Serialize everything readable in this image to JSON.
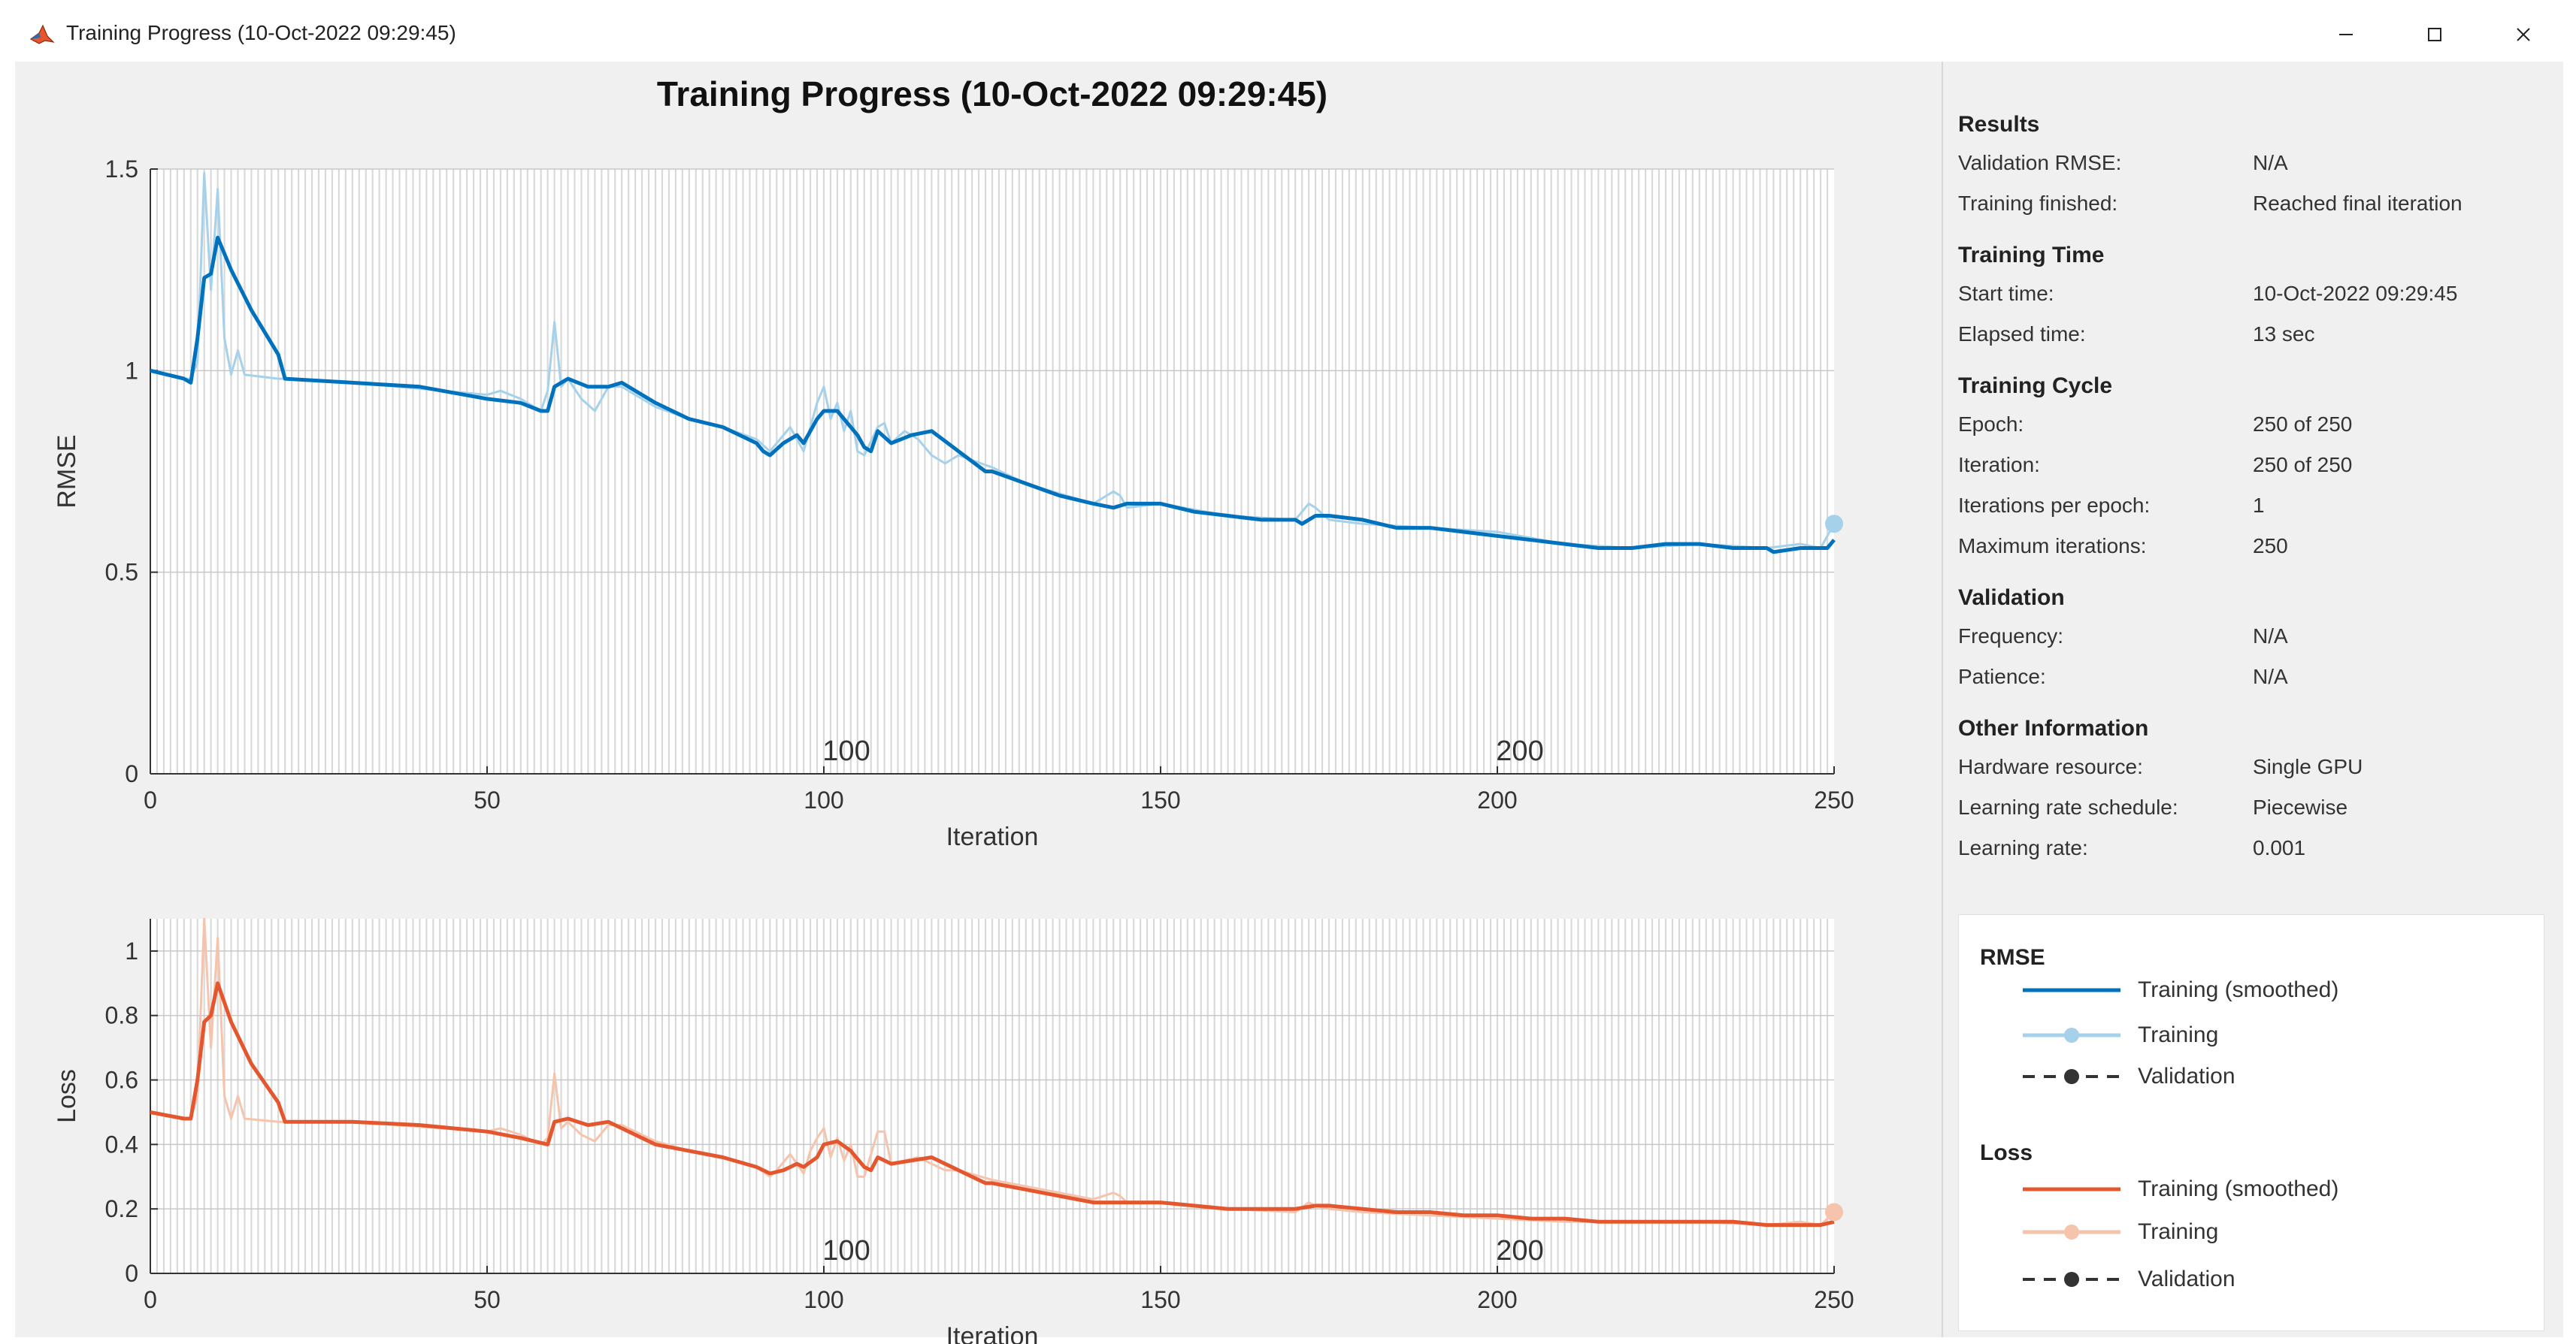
{
  "window": {
    "title": "Training Progress (10-Oct-2022 09:29:45)",
    "controls": [
      "minimize",
      "maximize",
      "close"
    ]
  },
  "plot_title": "Training Progress (10-Oct-2022 09:29:45)",
  "side_panel": {
    "sections": [
      {
        "title": "Results",
        "rows": [
          {
            "label": "Validation RMSE:",
            "value": "N/A"
          },
          {
            "label": "Training finished:",
            "value": "Reached final iteration"
          }
        ]
      },
      {
        "title": "Training Time",
        "rows": [
          {
            "label": "Start time:",
            "value": "10-Oct-2022 09:29:45"
          },
          {
            "label": "Elapsed time:",
            "value": "13 sec"
          }
        ]
      },
      {
        "title": "Training Cycle",
        "rows": [
          {
            "label": "Epoch:",
            "value": "250 of 250"
          },
          {
            "label": "Iteration:",
            "value": "250 of 250"
          },
          {
            "label": "Iterations per epoch:",
            "value": "1"
          },
          {
            "label": "Maximum iterations:",
            "value": "250"
          }
        ]
      },
      {
        "title": "Validation",
        "rows": [
          {
            "label": "Frequency:",
            "value": "N/A"
          },
          {
            "label": "Patience:",
            "value": "N/A"
          }
        ]
      },
      {
        "title": "Other Information",
        "rows": [
          {
            "label": "Hardware resource:",
            "value": "Single GPU"
          },
          {
            "label": "Learning rate schedule:",
            "value": "Piecewise"
          },
          {
            "label": "Learning rate:",
            "value": "0.001"
          }
        ]
      }
    ]
  },
  "legend": {
    "rmse_title": "RMSE",
    "loss_title": "Loss",
    "items": [
      "Training (smoothed)",
      "Training",
      "Validation"
    ]
  },
  "colors": {
    "rmse_smoothed": "#0072bd",
    "rmse_raw": "#a6d1ea",
    "loss_smoothed": "#e4572e",
    "loss_raw": "#f6c3ac",
    "validation": "#333333"
  },
  "chart_data": [
    {
      "type": "line",
      "title": "Training Progress (10-Oct-2022 09:29:45)",
      "xlabel": "Iteration",
      "ylabel": "RMSE",
      "xlim": [
        0,
        250
      ],
      "ylim": [
        0,
        1.5
      ],
      "xticks": [
        "0",
        "50",
        "100",
        "150",
        "200",
        "250"
      ],
      "yticks": [
        "0",
        "0.5",
        "1",
        "1.5"
      ],
      "epoch_labels": [
        {
          "x": 100,
          "text": "100"
        },
        {
          "x": 200,
          "text": "200"
        }
      ],
      "series": [
        {
          "name": "Training (smoothed)",
          "x": [
            0,
            5,
            6,
            7,
            8,
            9,
            10,
            12,
            15,
            19,
            20,
            30,
            40,
            50,
            55,
            58,
            59,
            60,
            62,
            65,
            68,
            70,
            75,
            80,
            85,
            90,
            91,
            92,
            94,
            96,
            97,
            99,
            100,
            102,
            104,
            105,
            106,
            107,
            108,
            110,
            113,
            116,
            120,
            124,
            125,
            130,
            135,
            140,
            143,
            145,
            150,
            155,
            160,
            165,
            170,
            171,
            173,
            175,
            180,
            185,
            190,
            195,
            200,
            205,
            210,
            215,
            218,
            220,
            225,
            230,
            235,
            240,
            241,
            245,
            248,
            249,
            250
          ],
          "y": [
            1.0,
            0.98,
            0.97,
            1.08,
            1.23,
            1.24,
            1.33,
            1.25,
            1.15,
            1.04,
            0.98,
            0.97,
            0.96,
            0.93,
            0.92,
            0.9,
            0.9,
            0.96,
            0.98,
            0.96,
            0.96,
            0.97,
            0.92,
            0.88,
            0.86,
            0.82,
            0.8,
            0.79,
            0.82,
            0.84,
            0.82,
            0.88,
            0.9,
            0.9,
            0.86,
            0.84,
            0.81,
            0.8,
            0.85,
            0.82,
            0.84,
            0.85,
            0.8,
            0.75,
            0.75,
            0.72,
            0.69,
            0.67,
            0.66,
            0.67,
            0.67,
            0.65,
            0.64,
            0.63,
            0.63,
            0.62,
            0.64,
            0.64,
            0.63,
            0.61,
            0.61,
            0.6,
            0.59,
            0.58,
            0.57,
            0.56,
            0.56,
            0.56,
            0.57,
            0.57,
            0.56,
            0.56,
            0.55,
            0.56,
            0.56,
            0.56,
            0.58
          ]
        },
        {
          "name": "Training",
          "x": [
            0,
            5,
            6,
            7,
            8,
            9,
            10,
            11,
            12,
            13,
            14,
            19,
            20,
            30,
            50,
            52,
            55,
            58,
            59,
            60,
            61,
            62,
            64,
            66,
            68,
            70,
            75,
            80,
            85,
            90,
            92,
            93,
            95,
            97,
            98,
            99,
            100,
            101,
            102,
            103,
            104,
            105,
            106,
            108,
            109,
            110,
            112,
            114,
            116,
            118,
            120,
            125,
            130,
            140,
            143,
            144,
            145,
            150,
            160,
            170,
            172,
            173,
            175,
            180,
            190,
            200,
            210,
            220,
            230,
            240,
            245,
            248,
            250
          ],
          "y": [
            1.0,
            0.98,
            0.98,
            1.02,
            1.49,
            1.2,
            1.45,
            1.08,
            0.99,
            1.05,
            0.99,
            0.98,
            0.98,
            0.97,
            0.94,
            0.95,
            0.93,
            0.9,
            0.95,
            1.12,
            0.96,
            0.98,
            0.93,
            0.9,
            0.96,
            0.96,
            0.91,
            0.88,
            0.86,
            0.83,
            0.8,
            0.82,
            0.86,
            0.8,
            0.86,
            0.92,
            0.96,
            0.88,
            0.92,
            0.85,
            0.9,
            0.8,
            0.79,
            0.86,
            0.87,
            0.82,
            0.85,
            0.83,
            0.79,
            0.77,
            0.79,
            0.76,
            0.72,
            0.67,
            0.7,
            0.69,
            0.66,
            0.67,
            0.64,
            0.63,
            0.67,
            0.66,
            0.63,
            0.62,
            0.61,
            0.6,
            0.57,
            0.56,
            0.57,
            0.56,
            0.57,
            0.56,
            0.62
          ]
        },
        {
          "name": "Validation",
          "x": [],
          "y": []
        }
      ]
    },
    {
      "type": "line",
      "xlabel": "Iteration",
      "ylabel": "Loss",
      "xlim": [
        0,
        250
      ],
      "ylim": [
        0,
        1.1
      ],
      "xticks": [
        "0",
        "50",
        "100",
        "150",
        "200",
        "250"
      ],
      "yticks": [
        "0",
        "0.2",
        "0.4",
        "0.6",
        "0.8",
        "1"
      ],
      "epoch_labels": [
        {
          "x": 100,
          "text": "100"
        },
        {
          "x": 200,
          "text": "200"
        }
      ],
      "series": [
        {
          "name": "Training (smoothed)",
          "x": [
            0,
            5,
            6,
            7,
            8,
            9,
            10,
            12,
            15,
            19,
            20,
            30,
            40,
            50,
            55,
            59,
            60,
            62,
            65,
            68,
            70,
            75,
            80,
            85,
            90,
            92,
            94,
            96,
            97,
            99,
            100,
            102,
            104,
            106,
            107,
            108,
            110,
            113,
            116,
            120,
            124,
            125,
            130,
            135,
            140,
            143,
            145,
            150,
            155,
            160,
            165,
            170,
            173,
            175,
            180,
            185,
            190,
            195,
            200,
            205,
            210,
            215,
            220,
            225,
            230,
            235,
            240,
            245,
            248,
            250
          ],
          "y": [
            0.5,
            0.48,
            0.48,
            0.6,
            0.78,
            0.8,
            0.9,
            0.78,
            0.65,
            0.53,
            0.47,
            0.47,
            0.46,
            0.44,
            0.42,
            0.4,
            0.47,
            0.48,
            0.46,
            0.47,
            0.45,
            0.4,
            0.38,
            0.36,
            0.33,
            0.31,
            0.32,
            0.34,
            0.33,
            0.36,
            0.4,
            0.41,
            0.38,
            0.33,
            0.32,
            0.36,
            0.34,
            0.35,
            0.36,
            0.32,
            0.28,
            0.28,
            0.26,
            0.24,
            0.22,
            0.22,
            0.22,
            0.22,
            0.21,
            0.2,
            0.2,
            0.2,
            0.21,
            0.21,
            0.2,
            0.19,
            0.19,
            0.18,
            0.18,
            0.17,
            0.17,
            0.16,
            0.16,
            0.16,
            0.16,
            0.16,
            0.15,
            0.15,
            0.15,
            0.16
          ]
        },
        {
          "name": "Training",
          "x": [
            0,
            5,
            6,
            7,
            8,
            9,
            10,
            11,
            12,
            13,
            14,
            19,
            20,
            30,
            50,
            52,
            55,
            58,
            59,
            60,
            61,
            62,
            64,
            66,
            68,
            70,
            75,
            80,
            85,
            90,
            92,
            93,
            95,
            97,
            98,
            99,
            100,
            101,
            102,
            103,
            104,
            105,
            106,
            108,
            109,
            110,
            114,
            118,
            120,
            125,
            130,
            140,
            143,
            144,
            145,
            150,
            160,
            170,
            172,
            173,
            175,
            180,
            190,
            200,
            210,
            220,
            230,
            240,
            245,
            248,
            250
          ],
          "y": [
            0.5,
            0.48,
            0.48,
            0.55,
            1.1,
            0.7,
            1.04,
            0.55,
            0.48,
            0.55,
            0.48,
            0.47,
            0.47,
            0.47,
            0.44,
            0.45,
            0.43,
            0.4,
            0.42,
            0.62,
            0.45,
            0.47,
            0.43,
            0.41,
            0.46,
            0.46,
            0.41,
            0.38,
            0.36,
            0.33,
            0.3,
            0.32,
            0.37,
            0.31,
            0.38,
            0.42,
            0.45,
            0.36,
            0.42,
            0.35,
            0.4,
            0.3,
            0.3,
            0.44,
            0.44,
            0.34,
            0.36,
            0.32,
            0.32,
            0.29,
            0.27,
            0.23,
            0.25,
            0.24,
            0.22,
            0.22,
            0.2,
            0.19,
            0.22,
            0.21,
            0.2,
            0.19,
            0.18,
            0.17,
            0.16,
            0.16,
            0.16,
            0.15,
            0.16,
            0.15,
            0.19
          ]
        },
        {
          "name": "Validation",
          "x": [],
          "y": []
        }
      ]
    }
  ]
}
